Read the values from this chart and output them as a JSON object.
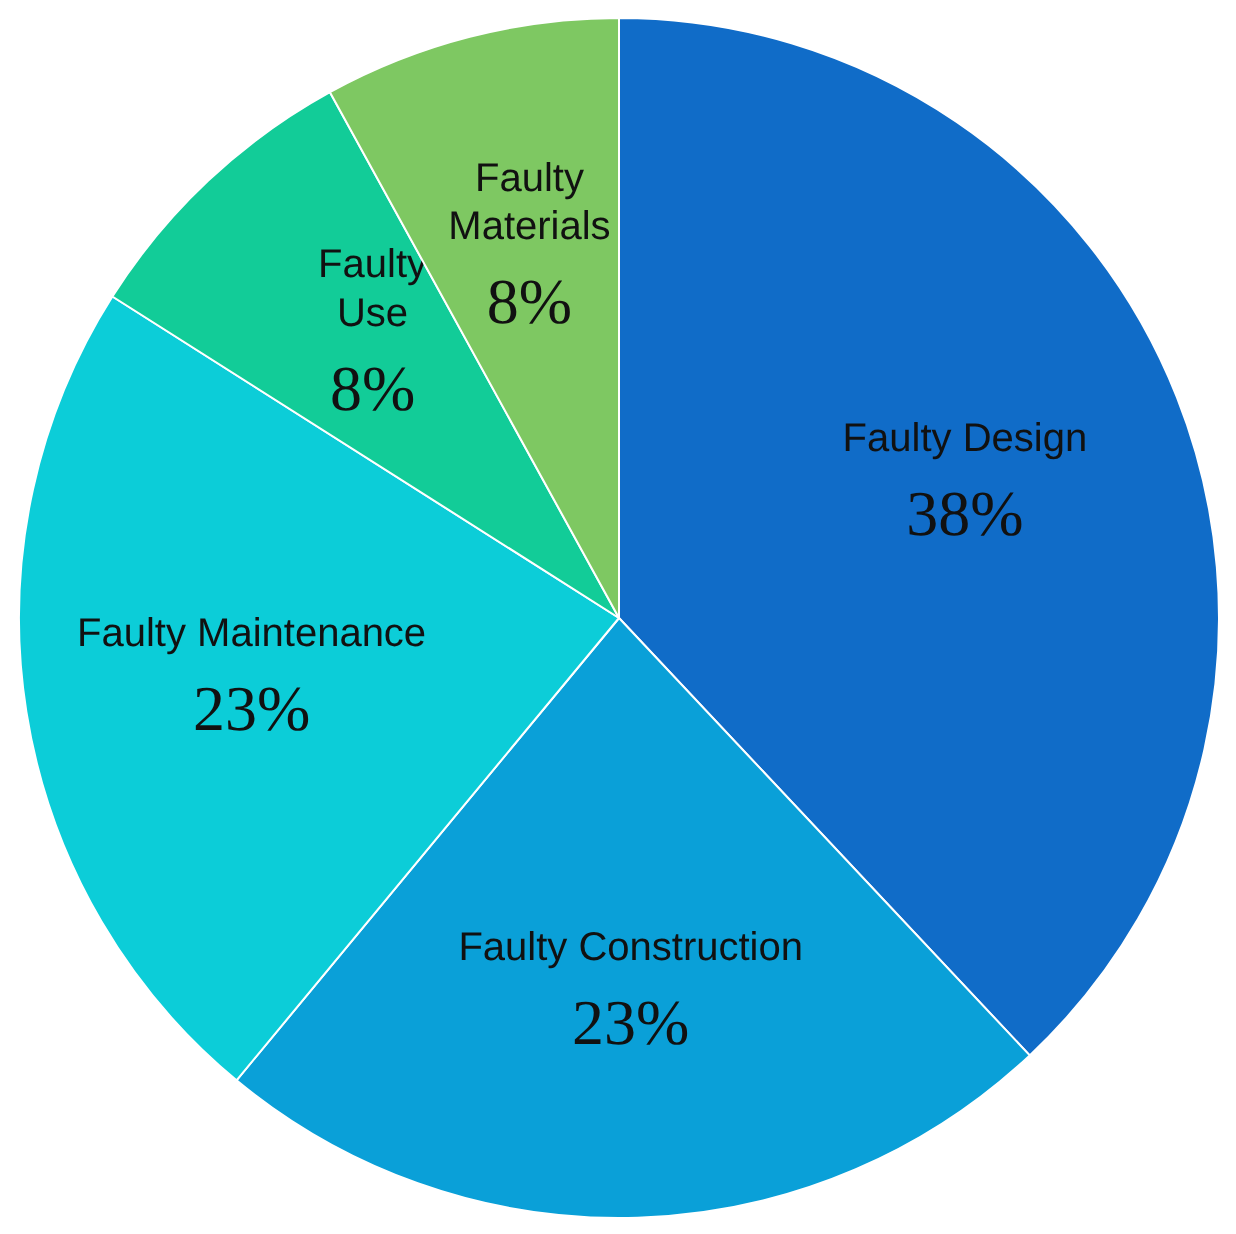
{
  "chart_data": {
    "type": "pie",
    "categories": [
      "Faulty Design",
      "Faulty Construction",
      "Faulty Maintenance",
      "Faulty Use",
      "Faulty Materials"
    ],
    "values": [
      38,
      23,
      23,
      8,
      8
    ],
    "value_labels": [
      "38%",
      "23%",
      "23%",
      "8%",
      "8%"
    ],
    "colors": [
      "#106cc8",
      "#0aa0d8",
      "#0ccdd8",
      "#12cc98",
      "#7ec862"
    ]
  }
}
